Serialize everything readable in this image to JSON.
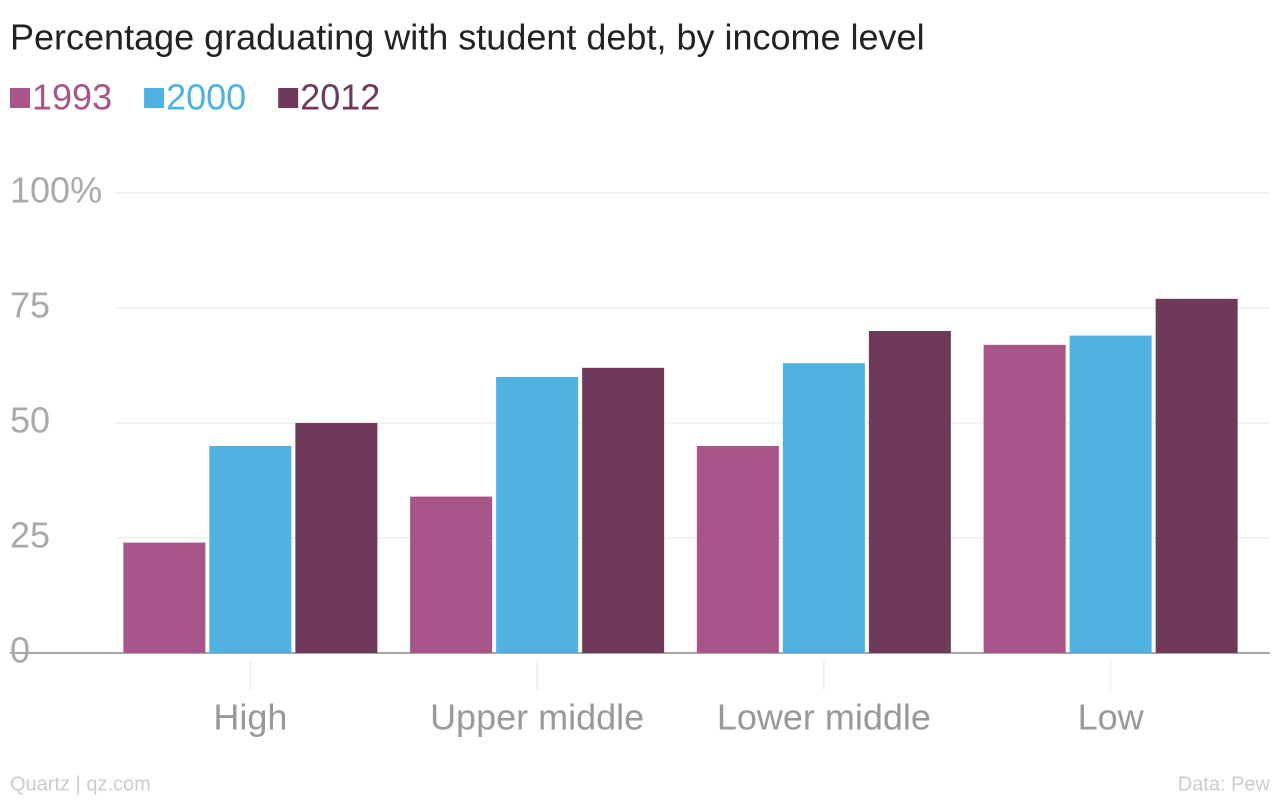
{
  "chart_data": {
    "type": "bar",
    "title": "Percentage graduating with student debt, by income level",
    "categories": [
      "High",
      "Upper middle",
      "Lower middle",
      "Low"
    ],
    "series": [
      {
        "name": "1993",
        "color": "#a8568a",
        "values": [
          24,
          34,
          45,
          67
        ]
      },
      {
        "name": "2000",
        "color": "#50b1e3",
        "values": [
          45,
          60,
          63,
          69
        ]
      },
      {
        "name": "2012",
        "color": "#6f3a5a",
        "values": [
          50,
          62,
          70,
          77
        ]
      }
    ],
    "ylim": [
      0,
      100
    ],
    "yticks": [
      0,
      25,
      50,
      75,
      {
        "value": 100,
        "label": "100%"
      }
    ],
    "grid": true,
    "credit": "Quartz | qz.com",
    "source": "Data: Pew"
  }
}
